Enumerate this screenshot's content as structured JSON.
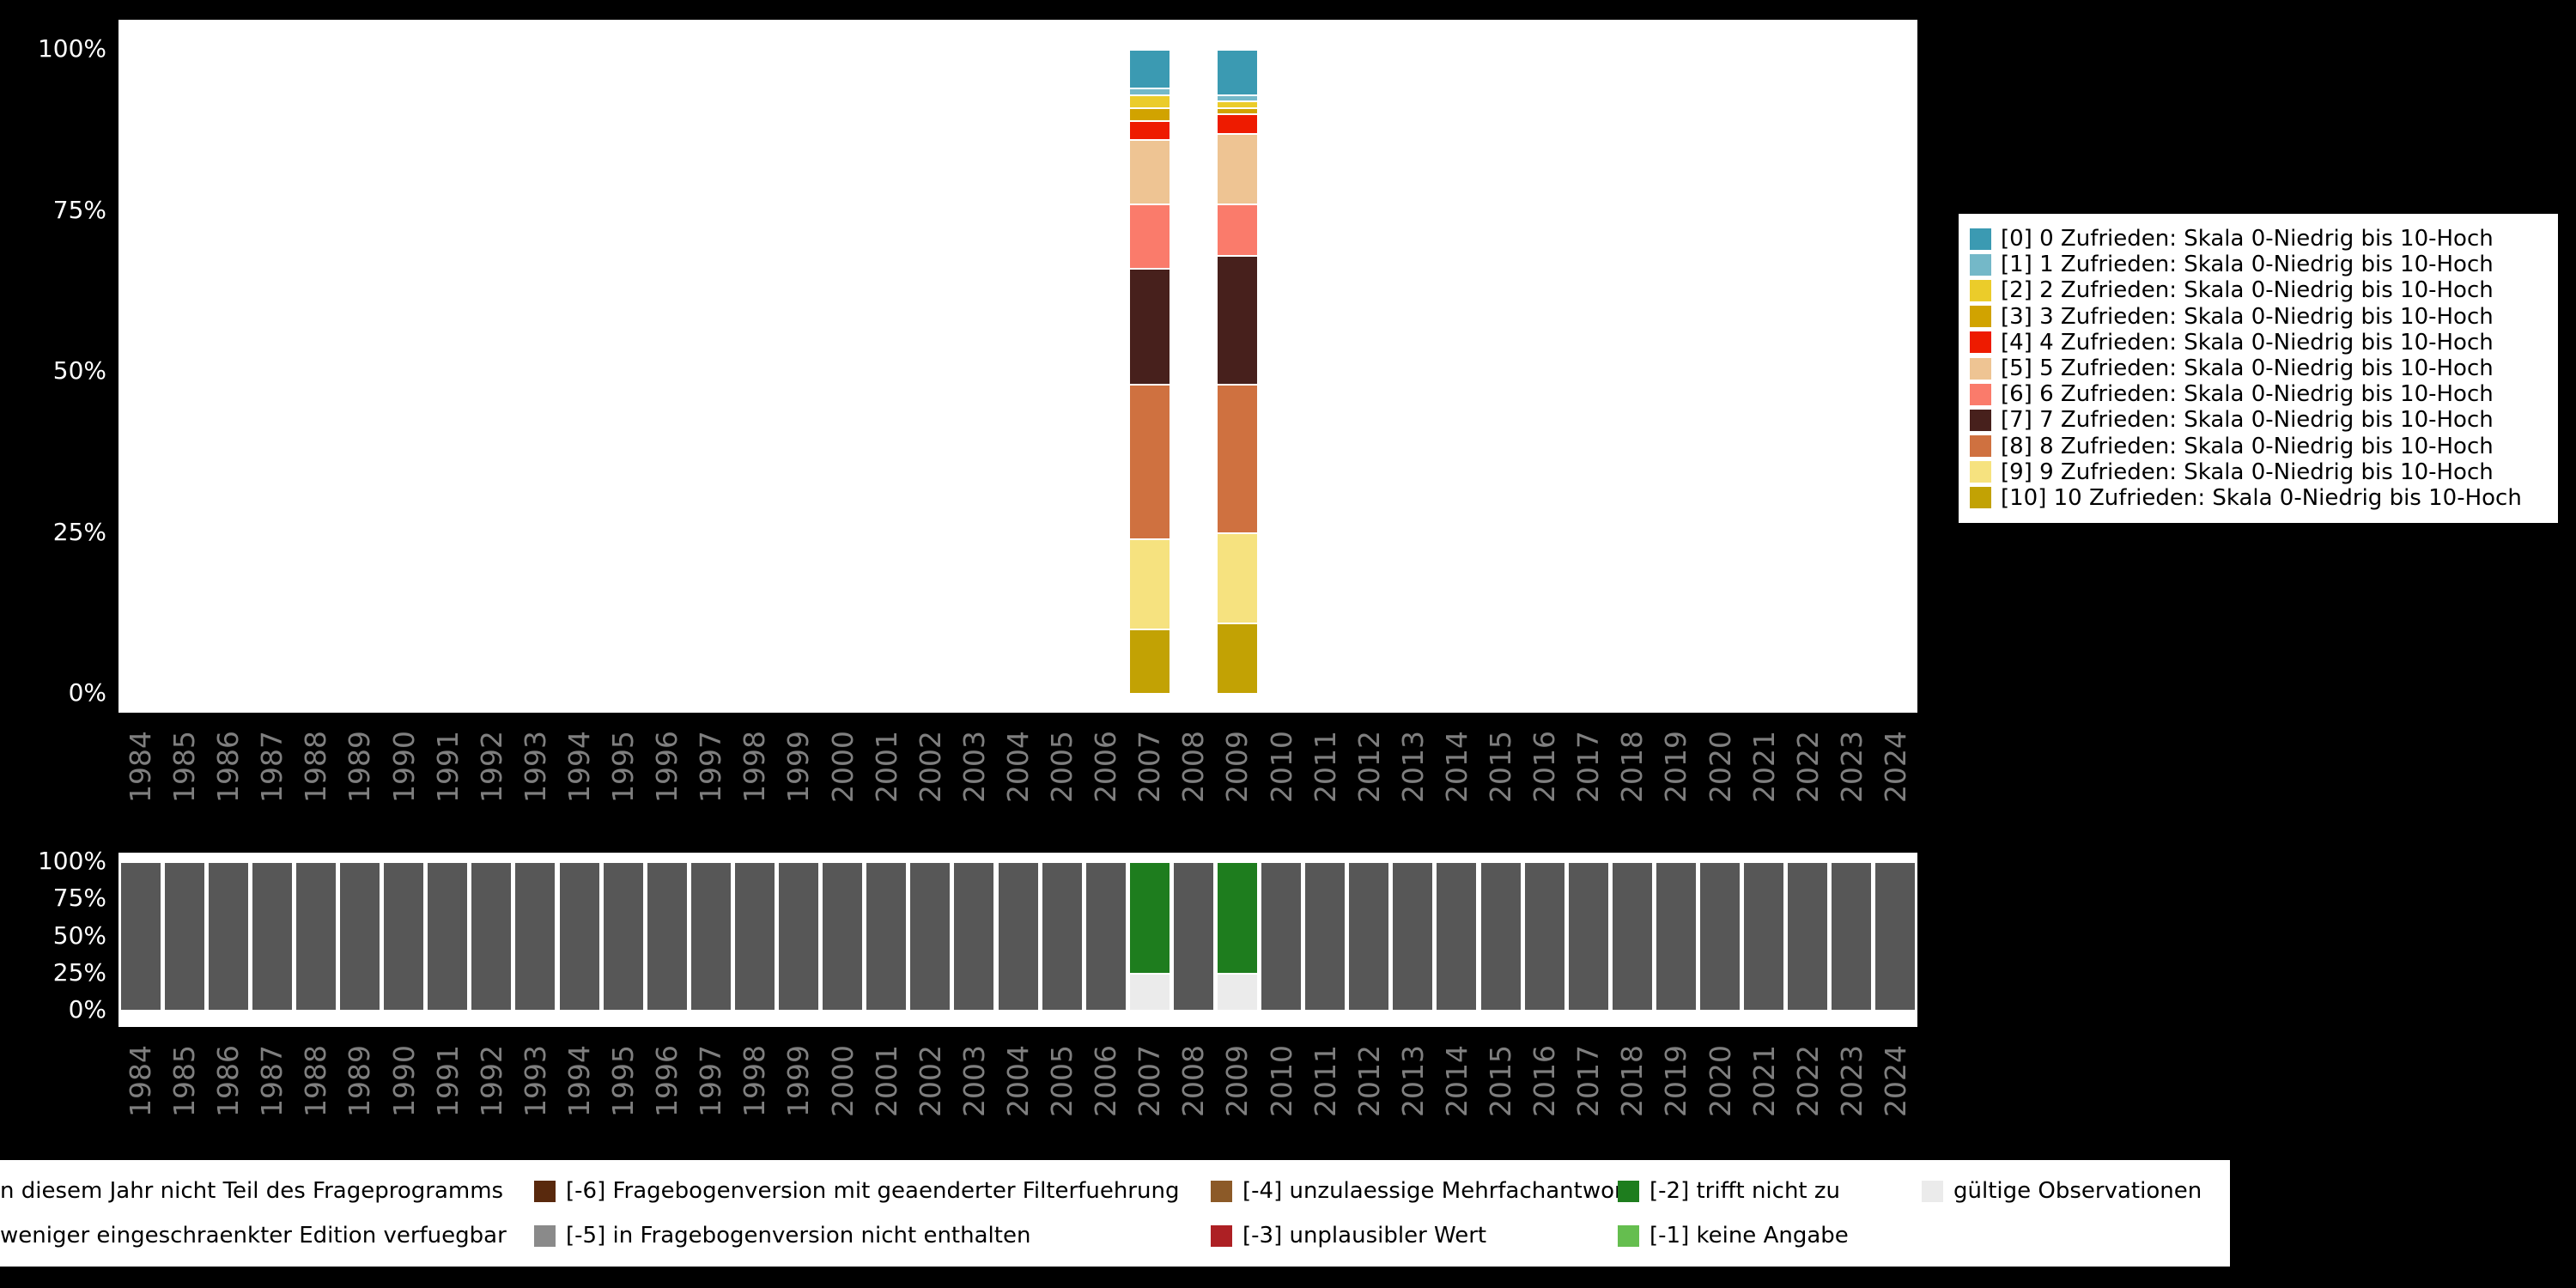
{
  "palette": {
    "page_background": "#000000",
    "plot_background": "#FFFFFF",
    "axis_tick_text": "#FFFFFF",
    "year_label_text": "#7F7F7F",
    "legend_text": "#000000"
  },
  "axes": {
    "y_ticks": [
      "100%",
      "75%",
      "50%",
      "25%",
      "0%"
    ]
  },
  "chart_data": [
    {
      "name": "satisfaction-distribution-by-year",
      "type": "bar",
      "stacking": "percent",
      "title": "",
      "xlabel": "",
      "ylabel": "",
      "ylim": [
        0,
        100
      ],
      "y_tick_labels": [
        "0%",
        "25%",
        "50%",
        "75%",
        "100%"
      ],
      "legend_position": "right",
      "stack_order_note": "stacked bottom-to-top from [10] to [0]; only 2007 and 2009 have data",
      "x_categories": [
        "1984",
        "1985",
        "1986",
        "1987",
        "1988",
        "1989",
        "1990",
        "1991",
        "1992",
        "1993",
        "1994",
        "1995",
        "1996",
        "1997",
        "1998",
        "1999",
        "2000",
        "2001",
        "2002",
        "2003",
        "2004",
        "2005",
        "2006",
        "2007",
        "2008",
        "2009",
        "2010",
        "2011",
        "2012",
        "2013",
        "2014",
        "2015",
        "2016",
        "2017",
        "2018",
        "2019",
        "2020",
        "2021",
        "2022",
        "2023",
        "2024"
      ],
      "series": [
        {
          "label": "[0] 0 Zufrieden: Skala 0-Niedrig bis 10-Hoch",
          "color": "#3B9AB2",
          "values": {
            "2007": 6,
            "2009": 7
          }
        },
        {
          "label": "[1] 1 Zufrieden: Skala 0-Niedrig bis 10-Hoch",
          "color": "#74B8C8",
          "values": {
            "2007": 1,
            "2009": 1
          }
        },
        {
          "label": "[2] 2 Zufrieden: Skala 0-Niedrig bis 10-Hoch",
          "color": "#EBCC2A",
          "values": {
            "2007": 2,
            "2009": 1
          }
        },
        {
          "label": "[3] 3 Zufrieden: Skala 0-Niedrig bis 10-Hoch",
          "color": "#D1A300",
          "values": {
            "2007": 2,
            "2009": 1
          }
        },
        {
          "label": "[4] 4 Zufrieden: Skala 0-Niedrig bis 10-Hoch",
          "color": "#EE1B00",
          "values": {
            "2007": 3,
            "2009": 3
          }
        },
        {
          "label": "[5] 5 Zufrieden: Skala 0-Niedrig bis 10-Hoch",
          "color": "#EEC493",
          "values": {
            "2007": 10,
            "2009": 11
          }
        },
        {
          "label": "[6] 6 Zufrieden: Skala 0-Niedrig bis 10-Hoch",
          "color": "#FA7B6B",
          "values": {
            "2007": 10,
            "2009": 8
          }
        },
        {
          "label": "[7] 7 Zufrieden: Skala 0-Niedrig bis 10-Hoch",
          "color": "#47201C",
          "values": {
            "2007": 18,
            "2009": 20
          }
        },
        {
          "label": "[8] 8 Zufrieden: Skala 0-Niedrig bis 10-Hoch",
          "color": "#CF7140",
          "values": {
            "2007": 24,
            "2009": 23
          }
        },
        {
          "label": "[9] 9 Zufrieden: Skala 0-Niedrig bis 10-Hoch",
          "color": "#F6E27F",
          "values": {
            "2007": 14,
            "2009": 14
          }
        },
        {
          "label": "[10] 10 Zufrieden: Skala 0-Niedrig bis 10-Hoch",
          "color": "#C2A204",
          "values": {
            "2007": 10,
            "2009": 11
          }
        }
      ]
    },
    {
      "name": "observation-status-by-year",
      "type": "bar",
      "stacking": "percent",
      "title": "",
      "xlabel": "",
      "ylabel": "",
      "ylim": [
        0,
        100
      ],
      "y_tick_labels": [
        "0%",
        "25%",
        "50%",
        "75%",
        "100%"
      ],
      "legend_position": "bottom",
      "stack_order_note": "stacked bottom-to-top in series order; years without explicit values use 'default'",
      "x_categories": [
        "1984",
        "1985",
        "1986",
        "1987",
        "1988",
        "1989",
        "1990",
        "1991",
        "1992",
        "1993",
        "1994",
        "1995",
        "1996",
        "1997",
        "1998",
        "1999",
        "2000",
        "2001",
        "2002",
        "2003",
        "2004",
        "2005",
        "2006",
        "2007",
        "2008",
        "2009",
        "2010",
        "2011",
        "2012",
        "2013",
        "2014",
        "2015",
        "2016",
        "2017",
        "2018",
        "2019",
        "2020",
        "2021",
        "2022",
        "2023",
        "2024"
      ],
      "series": [
        {
          "label": "gültige Observationen",
          "color": "#EBEBEB",
          "default": 0,
          "values": {
            "2007": 25,
            "2009": 25
          }
        },
        {
          "label": "[-2] trifft nicht zu",
          "color": "#1E7D1E",
          "default": 0,
          "values": {
            "2007": 75,
            "2009": 75
          }
        },
        {
          "label": "n diesem Jahr nicht Teil des Frageprogramms",
          "color": "#575757",
          "default": 100,
          "values": {
            "2007": 0,
            "2009": 0
          }
        }
      ]
    }
  ],
  "bottom_legend": {
    "rows": [
      [
        {
          "label": "n diesem Jahr nicht Teil des Frageprogramms",
          "swatch": null,
          "truncated": true
        },
        {
          "label": "[-6] Fragebogenversion mit geaenderter Filterfuehrung",
          "swatch": "#59290D"
        },
        {
          "label": "[-4] unzulaessige Mehrfachantwort",
          "swatch": "#8C5A28"
        },
        {
          "label": "[-2] trifft nicht zu",
          "swatch": "#1E7D1E"
        },
        {
          "label": "gültige Observationen",
          "swatch": "#EBEBEB"
        }
      ],
      [
        {
          "label": "weniger eingeschraenkter Edition verfuegbar",
          "swatch": null,
          "truncated": true
        },
        {
          "label": "[-5] in Fragebogenversion nicht enthalten",
          "swatch": "#8A8A8A"
        },
        {
          "label": "[-3] unplausibler Wert",
          "swatch": "#AD2024"
        },
        {
          "label": "[-1] keine Angabe",
          "swatch": "#65BE4F"
        },
        null
      ]
    ]
  }
}
